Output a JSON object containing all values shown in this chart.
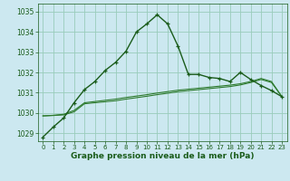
{
  "title": "Graphe pression niveau de la mer (hPa)",
  "background_color": "#cce8f0",
  "grid_color": "#99ccbb",
  "line_color_main": "#1a5c1a",
  "line_color_smooth1": "#2d7a2d",
  "line_color_smooth2": "#2d7a2d",
  "xlim": [
    -0.5,
    23.5
  ],
  "ylim": [
    1028.6,
    1035.4
  ],
  "yticks": [
    1029,
    1030,
    1031,
    1032,
    1033,
    1034,
    1035
  ],
  "xticks": [
    0,
    1,
    2,
    3,
    4,
    5,
    6,
    7,
    8,
    9,
    10,
    11,
    12,
    13,
    14,
    15,
    16,
    17,
    18,
    19,
    20,
    21,
    22,
    23
  ],
  "series1_x": [
    0,
    1,
    2,
    3,
    4,
    5,
    6,
    7,
    8,
    9,
    10,
    11,
    12,
    13,
    14,
    15,
    16,
    17,
    18,
    19,
    20,
    21,
    22,
    23
  ],
  "series1_y": [
    1028.8,
    1029.3,
    1029.75,
    1030.5,
    1031.15,
    1031.55,
    1032.1,
    1032.5,
    1033.05,
    1034.0,
    1034.4,
    1034.85,
    1034.4,
    1033.3,
    1031.9,
    1031.9,
    1031.75,
    1031.7,
    1031.55,
    1032.0,
    1031.65,
    1031.35,
    1031.1,
    1030.8
  ],
  "series2_x": [
    0,
    1,
    2,
    3,
    4,
    5,
    6,
    7,
    8,
    9,
    10,
    11,
    12,
    13,
    14,
    15,
    16,
    17,
    18,
    19,
    20,
    21,
    22,
    23
  ],
  "series2_y": [
    1029.85,
    1029.87,
    1029.9,
    1030.05,
    1030.45,
    1030.5,
    1030.55,
    1030.6,
    1030.68,
    1030.75,
    1030.82,
    1030.9,
    1030.97,
    1031.05,
    1031.1,
    1031.15,
    1031.2,
    1031.25,
    1031.3,
    1031.38,
    1031.5,
    1031.65,
    1031.5,
    1030.8
  ],
  "series3_x": [
    0,
    1,
    2,
    3,
    4,
    5,
    6,
    7,
    8,
    9,
    10,
    11,
    12,
    13,
    14,
    15,
    16,
    17,
    18,
    19,
    20,
    21,
    22,
    23
  ],
  "series3_y": [
    1029.85,
    1029.88,
    1029.93,
    1030.12,
    1030.5,
    1030.56,
    1030.62,
    1030.68,
    1030.76,
    1030.83,
    1030.9,
    1030.98,
    1031.05,
    1031.12,
    1031.17,
    1031.22,
    1031.27,
    1031.32,
    1031.37,
    1031.44,
    1031.55,
    1031.7,
    1031.55,
    1030.8
  ],
  "ylabel_fontsize": 5.5,
  "xlabel_fontsize": 6.5,
  "tick_fontsize": 5.0,
  "marker_size": 3.5,
  "line_width": 1.0
}
